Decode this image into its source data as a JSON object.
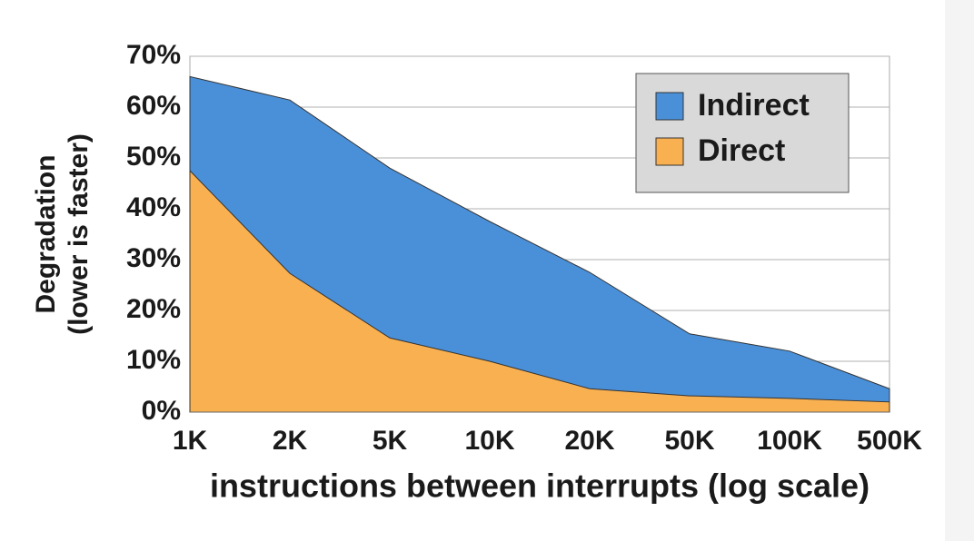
{
  "chart_data": {
    "type": "area",
    "xlabel": "instructions between interrupts (log scale)",
    "ylabel": [
      "Degradation",
      "(lower is faster)"
    ],
    "categories": [
      "1K",
      "2K",
      "5K",
      "10K",
      "20K",
      "50K",
      "100K",
      "500K"
    ],
    "series": [
      {
        "name": "Indirect",
        "color": "#4a90d9",
        "values": [
          66,
          61.4,
          48,
          37.5,
          27.5,
          15.4,
          12,
          4.6
        ]
      },
      {
        "name": "Direct",
        "color": "#f9b050",
        "values": [
          47.5,
          27.3,
          14.6,
          10,
          4.6,
          3.2,
          2.7,
          2
        ]
      }
    ],
    "ylim": [
      0,
      70
    ],
    "yticks": [
      {
        "value": 0,
        "label": "0%"
      },
      {
        "value": 10,
        "label": "10%"
      },
      {
        "value": 20,
        "label": "20%"
      },
      {
        "value": 30,
        "label": "30%"
      },
      {
        "value": 40,
        "label": "40%"
      },
      {
        "value": 50,
        "label": "50%"
      },
      {
        "value": 60,
        "label": "60%"
      },
      {
        "value": 70,
        "label": "70%"
      }
    ],
    "grid": true,
    "legend": "top-right"
  }
}
